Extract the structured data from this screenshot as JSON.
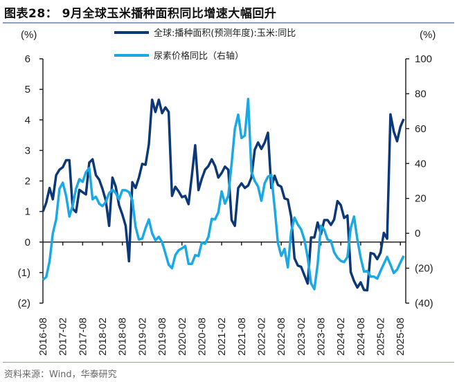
{
  "title": "图表28：  9月全球玉米播种面积同比增速大幅回升",
  "source": "资料来源：Wind，华泰研究",
  "colors": {
    "series_dark": "#0D3878",
    "series_light": "#1BA9E6",
    "axis": "#222222",
    "rule": "#8E9FBD"
  },
  "chart_data": {
    "type": "line",
    "title": "",
    "left_axis": {
      "unit_label": "(%)",
      "ylim": [
        -2,
        6
      ],
      "ticks": [
        6,
        5,
        4,
        3,
        2,
        1,
        0,
        -1,
        -2
      ],
      "tick_labels": [
        "6",
        "5",
        "4",
        "3",
        "2",
        "1",
        "0",
        "(1)",
        "(2)"
      ]
    },
    "right_axis": {
      "unit_label": "(%)",
      "ylim": [
        -40,
        100
      ],
      "ticks": [
        100,
        80,
        60,
        40,
        20,
        0,
        -20,
        -40
      ],
      "tick_labels": [
        "100",
        "80",
        "60",
        "40",
        "20",
        "0",
        "(20)",
        "(40)"
      ]
    },
    "x_start": "2016-08",
    "x_tick_labels": [
      "2016-08",
      "2017-02",
      "2017-08",
      "2018-02",
      "2018-08",
      "2019-02",
      "2019-08",
      "2020-02",
      "2020-08",
      "2021-02",
      "2021-08",
      "2022-02",
      "2022-08",
      "2023-02",
      "2023-08",
      "2024-02",
      "2024-08",
      "2025-02",
      "2025-08"
    ],
    "legend_position": "top",
    "grid": false,
    "series": [
      {
        "name": "全球:播种面积(预测年度):玉米:同比",
        "axis": "left",
        "color": "#0D3878",
        "start": "2016-08",
        "values": [
          1.0,
          1.29,
          1.77,
          1.4,
          2.19,
          2.37,
          2.45,
          2.68,
          2.68,
          1.09,
          0.98,
          1.71,
          1.63,
          1.56,
          2.6,
          2.71,
          2.19,
          2.04,
          1.74,
          1.36,
          0.53,
          2.11,
          1.81,
          1.21,
          0.9,
          0.53,
          -0.63,
          1.96,
          1.77,
          2.11,
          2.56,
          2.53,
          3.2,
          4.66,
          4.26,
          4.66,
          4.22,
          4.41,
          4.26,
          1.51,
          1.81,
          1.66,
          1.47,
          1.51,
          1.24,
          2.18,
          3.17,
          1.7,
          2.07,
          2.37,
          2.49,
          2.71,
          2.49,
          2.11,
          2.26,
          2.47,
          2.37,
          0.72,
          0.53,
          1.77,
          1.92,
          1.77,
          1.85,
          2.11,
          3.02,
          3.26,
          3.05,
          3.26,
          3.58,
          1.77,
          2.17,
          1.87,
          1.81,
          1.43,
          1.39,
          0.83,
          -0.53,
          -0.77,
          -0.81,
          -1.09,
          -1.36,
          0.15,
          0.15,
          0.64,
          0.26,
          0.72,
          0.72,
          0.56,
          0.74,
          1.34,
          1.21,
          0.79,
          0.87,
          -0.98,
          -1.28,
          -1.49,
          -1.32,
          -1.57,
          -1.58,
          -0.36,
          -0.39,
          -0.56,
          -0.34,
          0.3,
          0.11,
          4.18,
          3.62,
          3.3,
          3.77,
          4.03
        ]
      },
      {
        "name": "尿素价格同比（右轴）",
        "axis": "right",
        "color": "#1BA9E6",
        "start": "2016-08",
        "values": [
          -26.7,
          -25,
          -16,
          0,
          8,
          25.5,
          29,
          21.5,
          9.6,
          16,
          25.5,
          31,
          29.5,
          35,
          37.4,
          19.5,
          21,
          17,
          15.6,
          18,
          23,
          25,
          23,
          19.5,
          24.7,
          24.7,
          23.6,
          19,
          3.7,
          -3.6,
          -3,
          3,
          8,
          0,
          -4,
          -2,
          -5,
          -11.5,
          -18,
          -20,
          -12.5,
          -9.7,
          -8.6,
          -7.3,
          -17.5,
          -17.5,
          -12.5,
          -13,
          -5.3,
          -6,
          -2,
          8.3,
          8,
          12,
          24,
          17,
          21.6,
          40,
          60,
          68,
          54.6,
          56,
          77,
          35.4,
          30,
          26.8,
          18.6,
          28.8,
          32.4,
          33.5,
          15,
          -5.6,
          -12.9,
          -8.9,
          -19.5,
          1,
          9,
          5,
          2.3,
          -3.6,
          -14,
          -28.7,
          -32,
          -18,
          4.3,
          2,
          -3.6,
          -4.3,
          -10.9,
          -14,
          -15.8,
          -16.5,
          -13.5,
          3,
          9.6,
          -3.6,
          -14,
          -22,
          -21.6,
          -24.8,
          -24.8,
          -26,
          -21.6,
          -17.5,
          -13.5,
          -18,
          -22.8,
          -20.8,
          -16.8,
          -12.9
        ]
      }
    ]
  }
}
